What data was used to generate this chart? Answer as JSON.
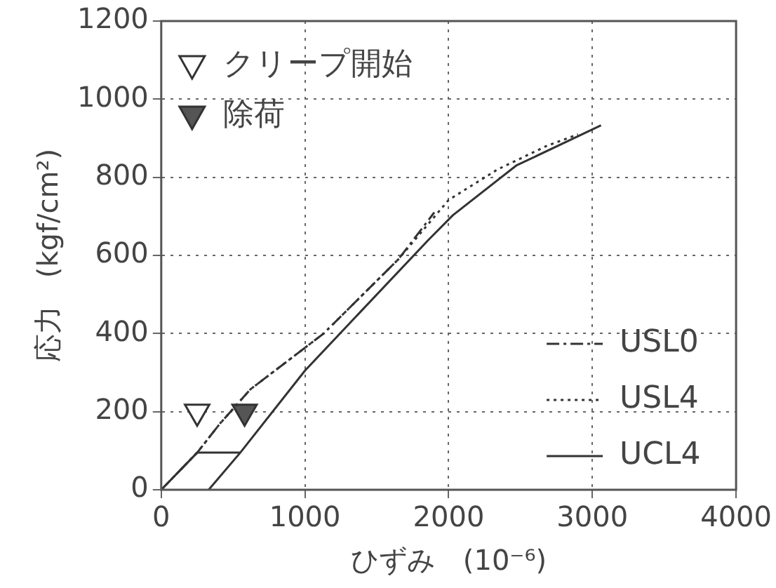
{
  "chart_data": {
    "type": "line",
    "xlabel": "ひずみ　(10⁻⁶)",
    "ylabel": "応力　(kgf/cm²)",
    "xlim": [
      0,
      4000
    ],
    "xticks": [
      0,
      1000,
      2000,
      3000,
      4000
    ],
    "ylim": [
      0,
      1200
    ],
    "yticks": [
      0,
      200,
      400,
      600,
      800,
      1000,
      1200
    ],
    "grid": true,
    "legend": "bottom right",
    "series": [
      {
        "name": "USL0",
        "line_style": "dashed",
        "color": "#333333",
        "x": [
          0,
          250,
          410,
          620,
          1130,
          1650,
          1900
        ],
        "values": [
          0,
          95,
          170,
          257,
          400,
          590,
          710
        ]
      },
      {
        "name": "USL4",
        "line_style": "dotted",
        "color": "#333333",
        "x": [
          0,
          250,
          410,
          620,
          1130,
          1650,
          2000,
          2340,
          2680,
          2900
        ],
        "values": [
          0,
          95,
          170,
          257,
          400,
          590,
          742,
          820,
          880,
          910
        ]
      },
      {
        "name": "UCL4",
        "line_style": "solid",
        "color": "#333333",
        "x": [
          0,
          250,
          550,
          330,
          550,
          1000,
          1860,
          2030,
          2470,
          3060
        ],
        "values": [
          0,
          95,
          95,
          0,
          95,
          305,
          640,
          703,
          830,
          933
        ]
      },
      {
        "name": "クリープ開始",
        "type": "scatter",
        "marker": "triangle",
        "color": "#ffffff",
        "x": [
          250
        ],
        "values": [
          200
        ]
      },
      {
        "name": "除荷",
        "type": "scatter",
        "marker": "triangle",
        "color": "#555555",
        "x": [
          580
        ],
        "values": [
          200
        ]
      }
    ]
  }
}
